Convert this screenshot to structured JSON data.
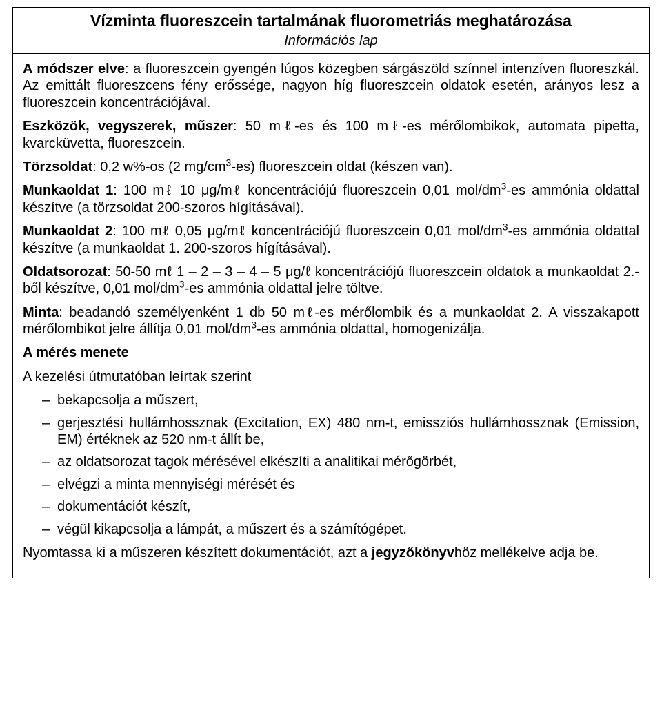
{
  "title": "Vízminta fluoreszcein tartalmának fluorometriás meghatározása",
  "subtitle": "Információs lap",
  "paragraphs": {
    "p1a": "A módszer elve",
    "p1b": ": a fluoreszcein gyengén lúgos közegben sárgászöld színnel intenzíven fluoreszkál. Az emittált fluoreszcens fény erőssége, nagyon híg fluoreszcein oldatok esetén, arányos lesz a fluoreszcein koncentrációjával.",
    "p2a": "Eszközök, vegyszerek, műszer",
    "p2b": ": 50 mℓ-es és 100 mℓ-es mérőlombikok, automata pipetta, kvarcküvetta, fluoreszcein.",
    "p3a": "Törzsoldat",
    "p3b_pre": ": 0,2 w%-os (2 mg/cm",
    "p3b_sup": "3",
    "p3b_post": "-es) fluoreszcein oldat (készen van).",
    "p4a": "Munkaoldat 1",
    "p4b_pre": ": 100 mℓ 10 μg/mℓ koncentrációjú fluoreszcein 0,01 mol/dm",
    "p4b_sup": "3",
    "p4b_post": "-es ammónia oldattal készítve (a törzsoldat 200-szoros hígításával).",
    "p5a": "Munkaoldat 2",
    "p5b_pre": ": 100 mℓ 0,05 μg/mℓ koncentrációjú fluoreszcein 0,01 mol/dm",
    "p5b_sup": "3",
    "p5b_post": "-es ammónia oldattal készítve (a munkaoldat 1. 200-szoros hígításával).",
    "p6a": "Oldatsorozat",
    "p6b_pre": ": 50-50 mℓ 1 – 2 – 3 – 4 – 5 μg/ℓ koncentrációjú fluoreszcein oldatok a munkaoldat 2.-ből készítve, 0,01 mol/dm",
    "p6b_sup": "3",
    "p6b_post": "-es ammónia oldattal jelre töltve.",
    "p7a": "Minta",
    "p7b_pre": ": beadandó személyenként 1 db 50 mℓ-es mérőlombik és a munkaoldat 2. A vissza­kapott mérőlombikot jelre állítja 0,01 mol/dm",
    "p7b_sup": "3",
    "p7b_post": "-es ammónia oldattal, homogenizálja.",
    "p8": "A mérés menete",
    "p9": "A kezelési útmutatóban leírtak szerint"
  },
  "bullets": {
    "b1": "bekapcsolja a műszert,",
    "b2": "gerjesztési hullámhossznak (Excitation, EX) 480 nm-t, emissziós hullámhossznak (Emission, EM) értéknek az 520 nm-t állít be,",
    "b3": "az oldatsorozat tagok mérésével elkészíti a analitikai mérőgörbét,",
    "b4": "elvégzi a minta mennyiségi mérését és",
    "b5": "dokumentációt készít,",
    "b6": "végül kikapcsolja a lámpát, a műszert és a számítógépet."
  },
  "closing": {
    "pre": "Nyomtassa ki a műszeren készített dokumentációt, azt a ",
    "bold": "jegyzőkönyv",
    "post": "höz mellékelve adja be."
  }
}
